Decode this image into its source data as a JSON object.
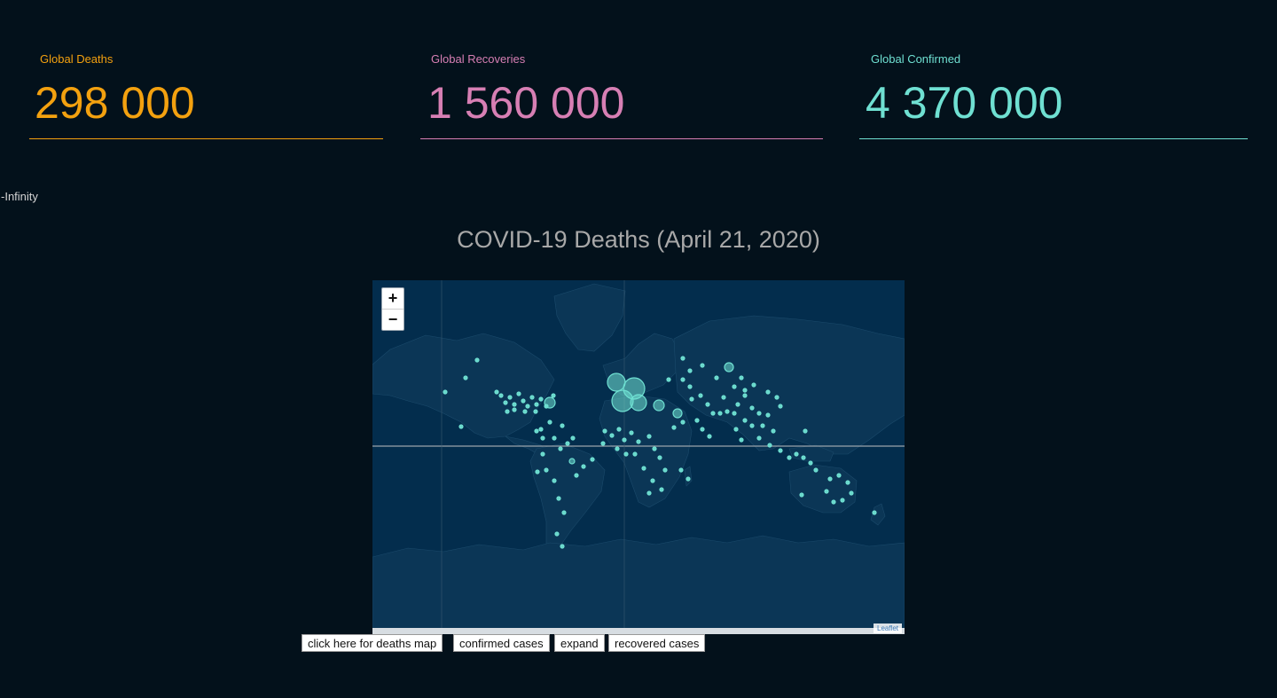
{
  "stats": {
    "deaths": {
      "label": "Global Deaths",
      "value": "298 000",
      "color": "#f3a10f"
    },
    "recoveries": {
      "label": "Global Recoveries",
      "value": "1 560 000",
      "color": "#d77fb4"
    },
    "confirmed": {
      "label": "Global Confirmed",
      "value": "4 370 000",
      "color": "#6fe0d2"
    }
  },
  "infinity_text": "-Infinity",
  "map": {
    "title": "COVID-19 Deaths (April 21, 2020)",
    "zoom_in": "+",
    "zoom_out": "−",
    "attribution": "Leaflet",
    "marker_color": "#6fe0d2",
    "land_color": "#0b3656",
    "water_color": "#032d4d"
  },
  "buttons": {
    "deaths_map": "click here for deaths map",
    "confirmed": "confirmed cases",
    "expand": "expand",
    "recovered": "recovered cases"
  }
}
